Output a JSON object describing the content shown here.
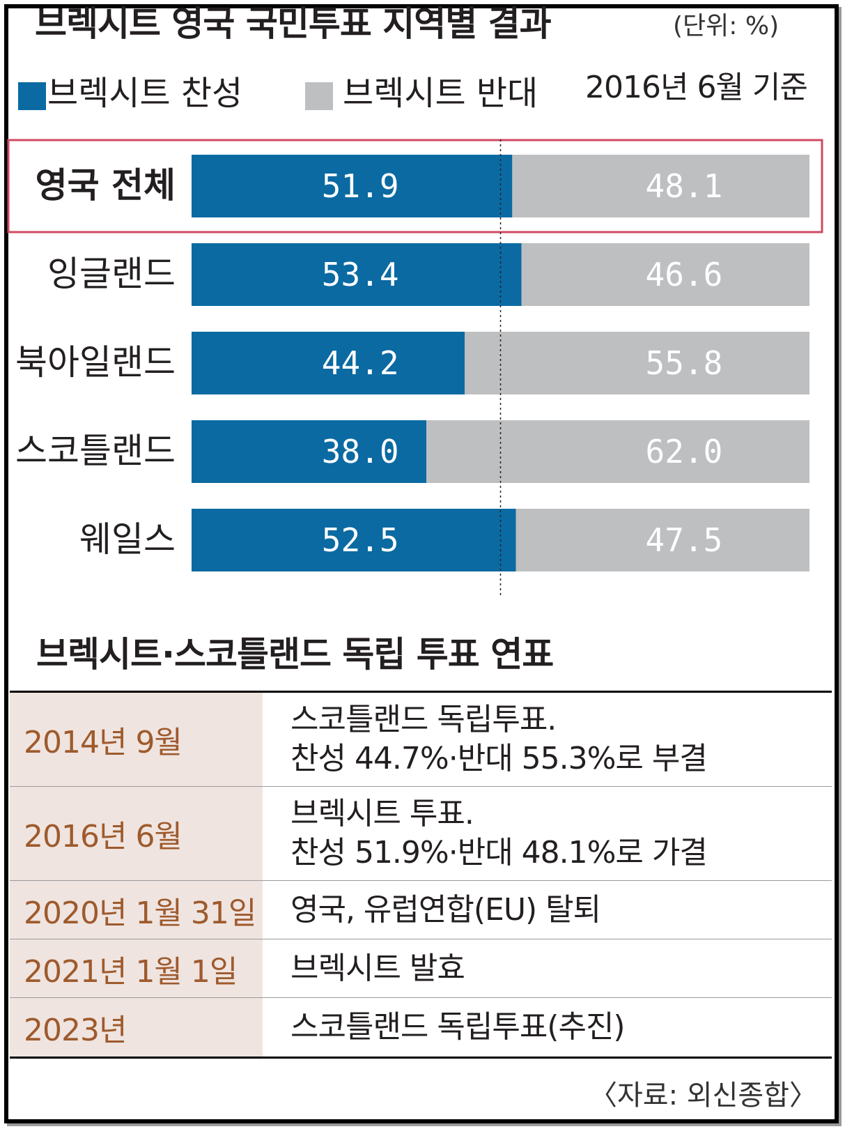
{
  "title": "브렉시트 영국 국민투표 지역별 결과",
  "unit": "(단위: %)",
  "legend": {
    "leave_label": "브렉시트 찬성",
    "remain_label": "브렉시트 반대"
  },
  "date_note": "2016년 6월 기준",
  "colors": {
    "leave": "#0b6aa2",
    "remain": "#bdbfc1",
    "highlight_border": "#d04a63",
    "timeline_date_bg": "#efe4e0",
    "timeline_date_text": "#9e5a2c"
  },
  "chart_data": {
    "type": "bar",
    "stacked": true,
    "orientation": "horizontal",
    "categories": [
      "영국 전체",
      "잉글랜드",
      "북아일랜드",
      "스코틀랜드",
      "웨일스"
    ],
    "series": [
      {
        "name": "브렉시트 찬성",
        "values": [
          51.9,
          53.4,
          44.2,
          38.0,
          52.5
        ],
        "labels": [
          "51.9",
          "53.4",
          "44.2",
          "38.0",
          "52.5"
        ]
      },
      {
        "name": "브렉시트 반대",
        "values": [
          48.1,
          46.6,
          55.8,
          62.0,
          47.5
        ],
        "labels": [
          "48.1",
          "46.6",
          "55.8",
          "62.0",
          "47.5"
        ]
      }
    ],
    "xlim": [
      0,
      100
    ],
    "reference_line": 50,
    "highlighted_category": "영국 전체"
  },
  "section_title": "브렉시트·스코틀랜드 독립 투표 연표",
  "timeline": [
    {
      "date": "2014년 9월",
      "lines": [
        "스코틀랜드 독립투표.",
        "찬성 44.7%·반대 55.3%로 부결"
      ]
    },
    {
      "date": "2016년 6월",
      "lines": [
        "브렉시트 투표.",
        "찬성 51.9%·반대 48.1%로 가결"
      ]
    },
    {
      "date": "2020년 1월 31일",
      "lines": [
        "영국, 유럽연합(EU) 탈퇴"
      ]
    },
    {
      "date": "2021년 1월 1일",
      "lines": [
        "브렉시트 발효"
      ]
    },
    {
      "date": "2023년",
      "lines": [
        "스코틀랜드 독립투표(추진)"
      ]
    }
  ],
  "source": "〈자료: 외신종합〉"
}
